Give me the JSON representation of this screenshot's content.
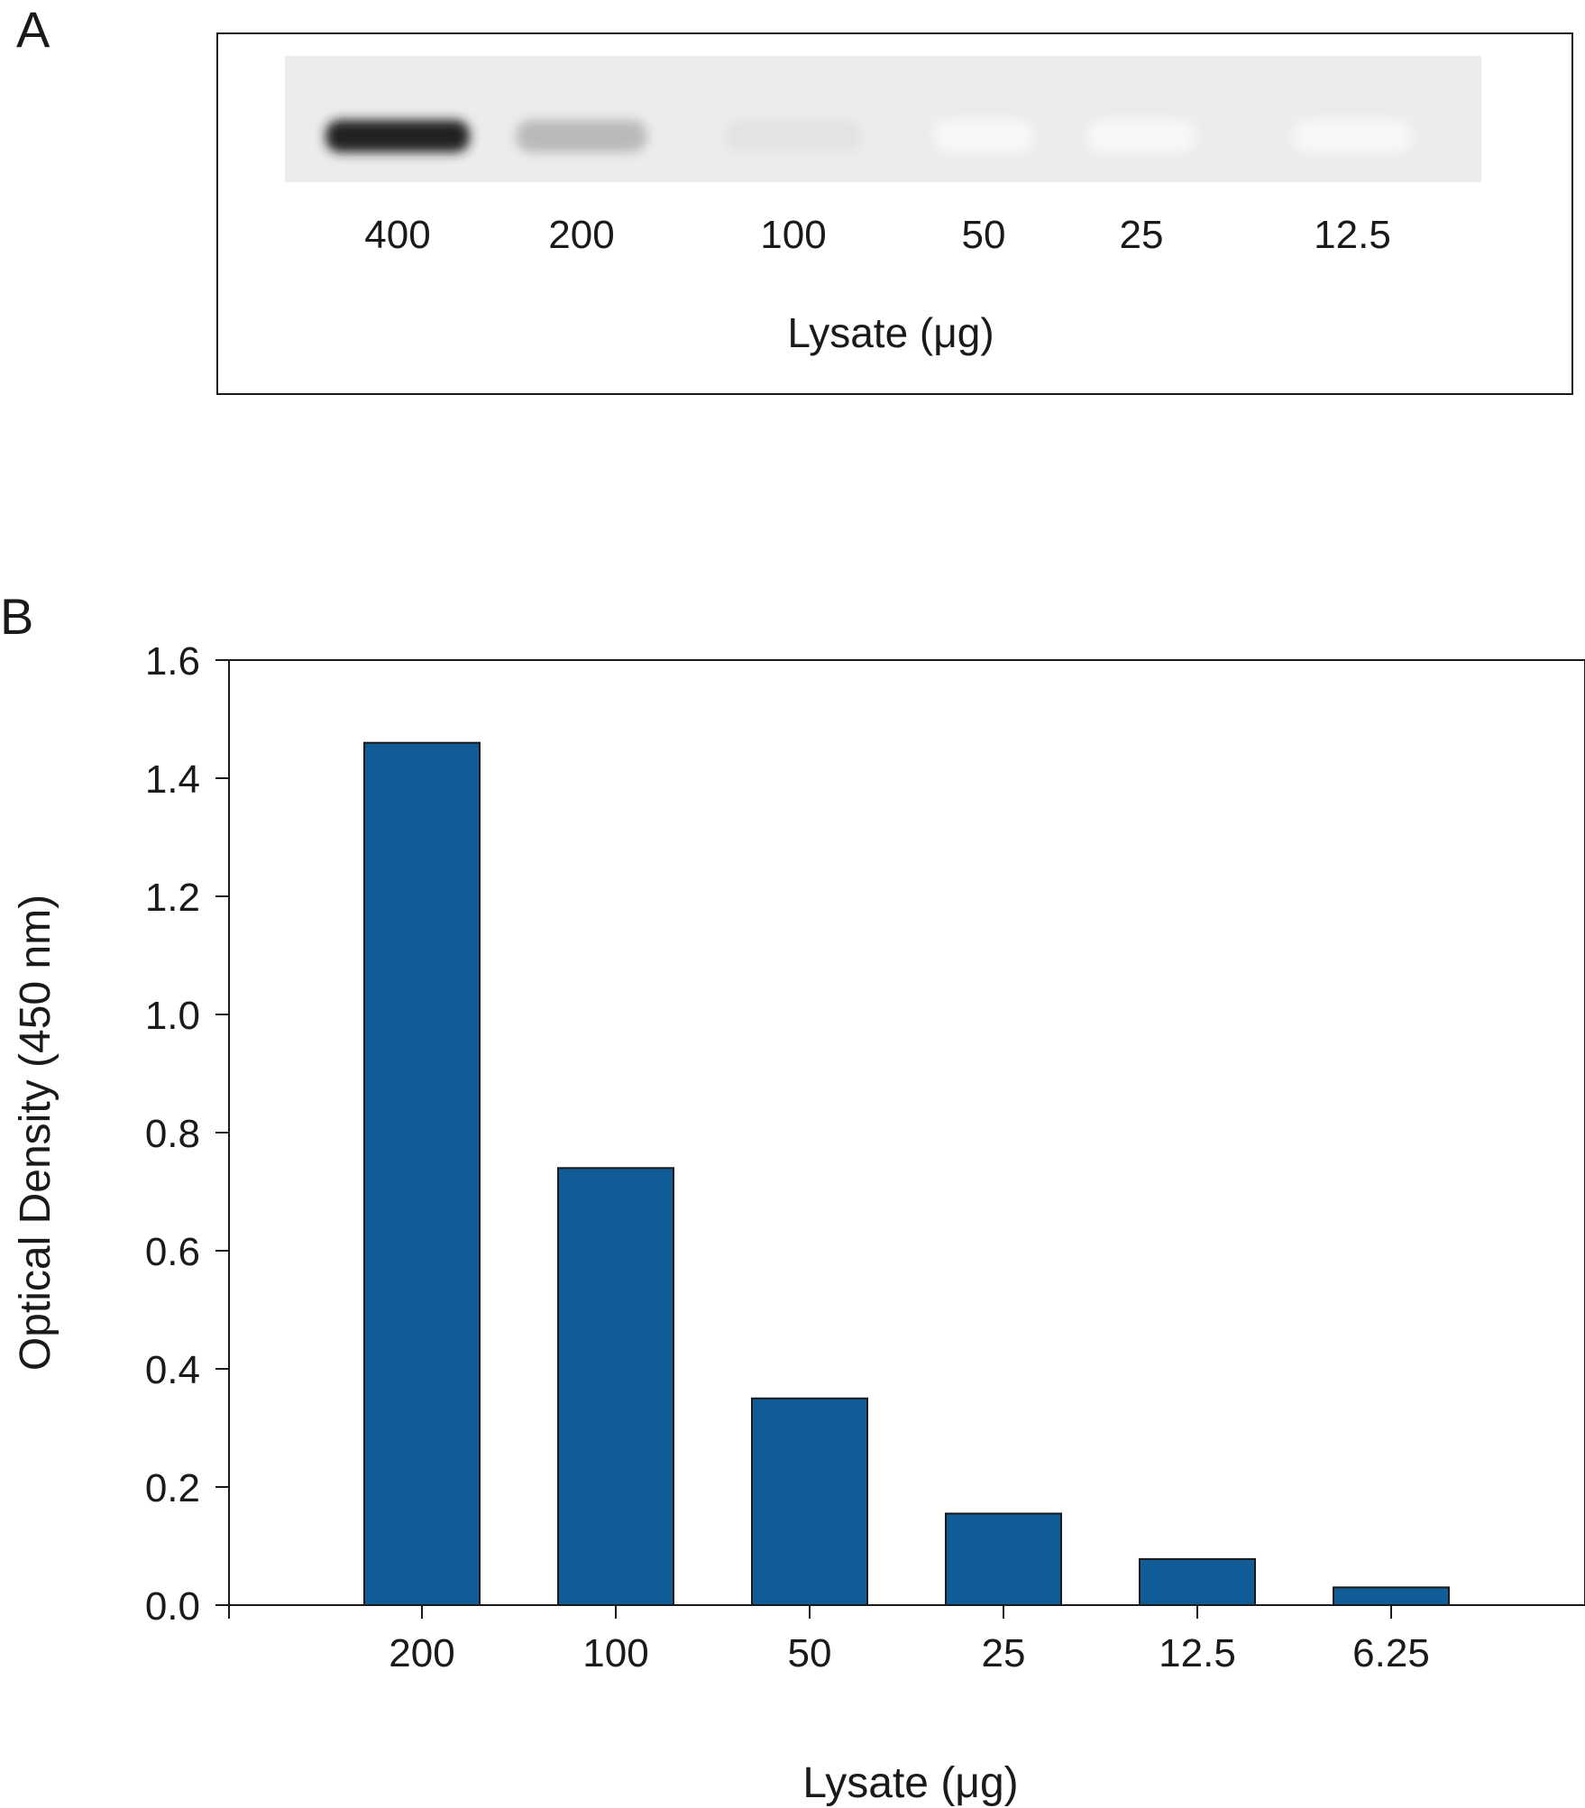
{
  "panel_a": {
    "label": "A",
    "lanes": [
      "400",
      "200",
      "100",
      "50",
      "25",
      "12.5"
    ],
    "band_intensity": [
      0.95,
      0.3,
      0.12,
      0.03,
      0.03,
      0.03
    ],
    "xlabel": "Lysate (μg)"
  },
  "panel_b": {
    "label": "B",
    "bar_color": "#0f5c96"
  },
  "chart_data": {
    "type": "bar",
    "categories": [
      "200",
      "100",
      "50",
      "25",
      "12.5",
      "6.25"
    ],
    "values": [
      1.46,
      0.74,
      0.35,
      0.155,
      0.078,
      0.03
    ],
    "title": "",
    "xlabel": "Lysate (μg)",
    "ylabel": "Optical Density (450 nm)",
    "ylim": [
      0,
      1.6
    ],
    "yticks": [
      "0.0",
      "0.2",
      "0.4",
      "0.6",
      "0.8",
      "1.0",
      "1.2",
      "1.4",
      "1.6"
    ],
    "grid": false,
    "legend": "none"
  }
}
